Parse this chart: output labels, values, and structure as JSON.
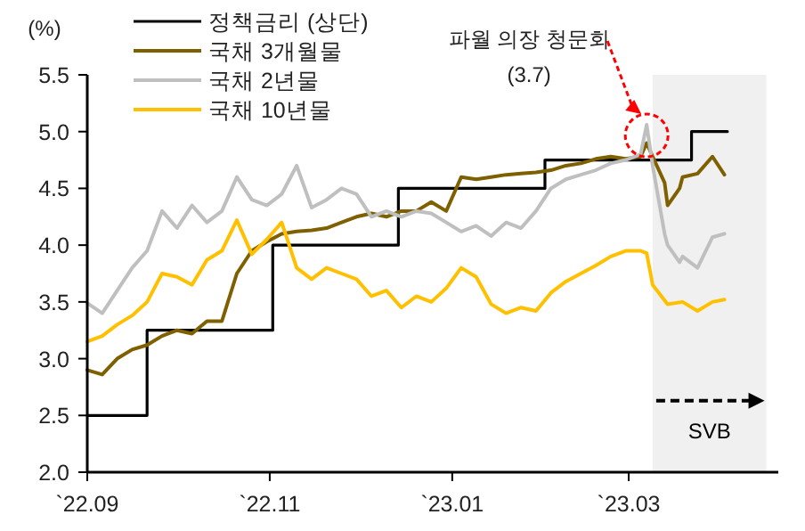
{
  "chart_data": {
    "type": "line",
    "ylabel": "(%)",
    "legend": "top left",
    "grid": false,
    "xlim": [
      "2022-09-01",
      "2023-04-20"
    ],
    "xticks": [
      {
        "value": "2022-09-01",
        "label": "`22.09"
      },
      {
        "value": "2022-11-01",
        "label": "`22.11"
      },
      {
        "value": "2023-01-01",
        "label": "`23.01"
      },
      {
        "value": "2023-03-01",
        "label": "`23.03"
      }
    ],
    "ylim": [
      2.0,
      5.5
    ],
    "yticks": [
      {
        "value": 2.0,
        "label": "2.0"
      },
      {
        "value": 2.5,
        "label": "2.5"
      },
      {
        "value": 3.0,
        "label": "3.0"
      },
      {
        "value": 3.5,
        "label": "3.5"
      },
      {
        "value": 4.0,
        "label": "4.0"
      },
      {
        "value": 4.5,
        "label": "4.5"
      },
      {
        "value": 5.0,
        "label": "5.0"
      },
      {
        "value": 5.5,
        "label": "5.5"
      }
    ],
    "bands": [
      {
        "axis": "x",
        "from": "2023-03-09",
        "to": "2023-04-16",
        "label": "SVB",
        "color": "#f0f0f0"
      }
    ],
    "annotations": [
      {
        "text": "파월 의장 청문회\n(3.7)",
        "x": "2023-03-07",
        "y": 5.06
      }
    ],
    "series": [
      {
        "name": "정책금리 (상단)",
        "type": "step",
        "color": "#000000",
        "x": [
          "2022-09-01",
          "2022-09-21",
          "2022-11-02",
          "2022-12-14",
          "2023-02-01",
          "2023-03-22",
          "2023-04-03"
        ],
        "values": [
          2.5,
          3.25,
          4.0,
          4.5,
          4.75,
          5.0,
          5.0
        ]
      },
      {
        "name": "국채 3개월물",
        "color": "#7f6000",
        "x": [
          "2022-09-01",
          "2022-09-06",
          "2022-09-11",
          "2022-09-16",
          "2022-09-21",
          "2022-09-26",
          "2022-10-01",
          "2022-10-06",
          "2022-10-11",
          "2022-10-16",
          "2022-10-21",
          "2022-10-26",
          "2022-10-31",
          "2022-11-05",
          "2022-11-10",
          "2022-11-15",
          "2022-11-20",
          "2022-11-25",
          "2022-11-30",
          "2022-12-05",
          "2022-12-10",
          "2022-12-15",
          "2022-12-20",
          "2022-12-25",
          "2022-12-30",
          "2023-01-04",
          "2023-01-09",
          "2023-01-14",
          "2023-01-19",
          "2023-01-24",
          "2023-01-29",
          "2023-02-03",
          "2023-02-08",
          "2023-02-13",
          "2023-02-18",
          "2023-02-23",
          "2023-02-28",
          "2023-03-05",
          "2023-03-07",
          "2023-03-09",
          "2023-03-13",
          "2023-03-14",
          "2023-03-18",
          "2023-03-19",
          "2023-03-24",
          "2023-03-29",
          "2023-04-02"
        ],
        "values": [
          2.9,
          2.86,
          3.0,
          3.08,
          3.12,
          3.2,
          3.25,
          3.22,
          3.33,
          3.33,
          3.75,
          3.95,
          4.03,
          4.1,
          4.12,
          4.13,
          4.15,
          4.2,
          4.25,
          4.28,
          4.25,
          4.3,
          4.3,
          4.38,
          4.3,
          4.6,
          4.58,
          4.6,
          4.62,
          4.63,
          4.64,
          4.66,
          4.7,
          4.72,
          4.76,
          4.78,
          4.76,
          4.78,
          4.9,
          4.78,
          4.55,
          4.35,
          4.5,
          4.6,
          4.63,
          4.78,
          4.62
        ]
      },
      {
        "name": "국채 2년물",
        "color": "#bfbfbf",
        "x": [
          "2022-09-01",
          "2022-09-06",
          "2022-09-11",
          "2022-09-16",
          "2022-09-21",
          "2022-09-26",
          "2022-10-01",
          "2022-10-06",
          "2022-10-11",
          "2022-10-16",
          "2022-10-21",
          "2022-10-26",
          "2022-10-31",
          "2022-11-05",
          "2022-11-10",
          "2022-11-15",
          "2022-11-20",
          "2022-11-25",
          "2022-11-30",
          "2022-12-05",
          "2022-12-10",
          "2022-12-15",
          "2022-12-20",
          "2022-12-25",
          "2022-12-30",
          "2023-01-04",
          "2023-01-09",
          "2023-01-14",
          "2023-01-19",
          "2023-01-24",
          "2023-01-29",
          "2023-02-03",
          "2023-02-08",
          "2023-02-13",
          "2023-02-18",
          "2023-02-23",
          "2023-02-28",
          "2023-03-05",
          "2023-03-07",
          "2023-03-09",
          "2023-03-13",
          "2023-03-14",
          "2023-03-18",
          "2023-03-19",
          "2023-03-24",
          "2023-03-29",
          "2023-04-02"
        ],
        "values": [
          3.49,
          3.4,
          3.6,
          3.8,
          3.95,
          4.3,
          4.15,
          4.35,
          4.2,
          4.3,
          4.6,
          4.4,
          4.35,
          4.45,
          4.7,
          4.33,
          4.4,
          4.5,
          4.45,
          4.25,
          4.3,
          4.25,
          4.3,
          4.28,
          4.2,
          4.12,
          4.17,
          4.08,
          4.2,
          4.15,
          4.3,
          4.5,
          4.58,
          4.62,
          4.66,
          4.72,
          4.75,
          4.8,
          5.06,
          4.7,
          4.1,
          4.0,
          3.85,
          3.9,
          3.8,
          4.07,
          4.1
        ]
      },
      {
        "name": "국채 10년물",
        "color": "#ffc000",
        "x": [
          "2022-09-01",
          "2022-09-06",
          "2022-09-11",
          "2022-09-16",
          "2022-09-21",
          "2022-09-26",
          "2022-10-01",
          "2022-10-06",
          "2022-10-11",
          "2022-10-16",
          "2022-10-21",
          "2022-10-26",
          "2022-10-31",
          "2022-11-05",
          "2022-11-10",
          "2022-11-15",
          "2022-11-20",
          "2022-11-25",
          "2022-11-30",
          "2022-12-05",
          "2022-12-10",
          "2022-12-15",
          "2022-12-20",
          "2022-12-25",
          "2022-12-30",
          "2023-01-04",
          "2023-01-09",
          "2023-01-14",
          "2023-01-19",
          "2023-01-24",
          "2023-01-29",
          "2023-02-03",
          "2023-02-08",
          "2023-02-13",
          "2023-02-18",
          "2023-02-23",
          "2023-02-28",
          "2023-03-05",
          "2023-03-07",
          "2023-03-09",
          "2023-03-14",
          "2023-03-19",
          "2023-03-24",
          "2023-03-29",
          "2023-04-02"
        ],
        "values": [
          3.15,
          3.2,
          3.3,
          3.38,
          3.5,
          3.75,
          3.72,
          3.65,
          3.87,
          3.95,
          4.22,
          3.92,
          4.05,
          4.2,
          3.8,
          3.7,
          3.8,
          3.75,
          3.7,
          3.55,
          3.6,
          3.45,
          3.55,
          3.5,
          3.62,
          3.8,
          3.72,
          3.48,
          3.4,
          3.45,
          3.42,
          3.58,
          3.68,
          3.75,
          3.82,
          3.9,
          3.95,
          3.95,
          3.93,
          3.65,
          3.48,
          3.5,
          3.42,
          3.5,
          3.52
        ]
      }
    ]
  }
}
